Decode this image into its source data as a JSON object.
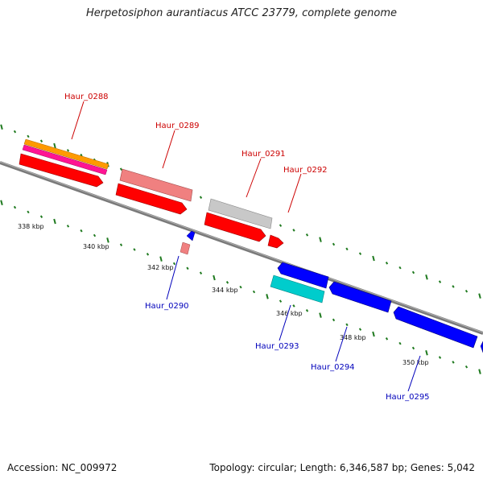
{
  "title": "Herpetosiphon aurantiacus ATCC 23779, complete genome",
  "footer": {
    "accession": "Accession: NC_009972",
    "info": "Topology: circular; Length: 6,346,587 bp; Genes: 5,042"
  },
  "colors": {
    "forward_label": "#cc0000",
    "reverse_label": "#0000bb",
    "backbone": "#7a7a7a",
    "tick": "#1f7a1f"
  },
  "kbp_labels": [
    "338 kbp",
    "340 kbp",
    "342 kbp",
    "344 kbp",
    "346 kbp",
    "348 kbp",
    "350 kbp"
  ],
  "genes": [
    {
      "name": "Haur_0288",
      "strand": "forward",
      "color": "#ff0000"
    },
    {
      "name": "Haur_0289",
      "strand": "forward",
      "color": "#ff0000"
    },
    {
      "name": "Haur_0290",
      "strand": "reverse",
      "color": "#0000ff"
    },
    {
      "name": "Haur_0291",
      "strand": "forward",
      "color": "#ff0000"
    },
    {
      "name": "Haur_0292",
      "strand": "forward",
      "color": "#ff0000"
    },
    {
      "name": "Haur_0293",
      "strand": "reverse",
      "color": "#0000ff"
    },
    {
      "name": "Haur_0294",
      "strand": "reverse",
      "color": "#0000ff"
    },
    {
      "name": "Haur_0295",
      "strand": "reverse",
      "color": "#0000ff"
    }
  ]
}
